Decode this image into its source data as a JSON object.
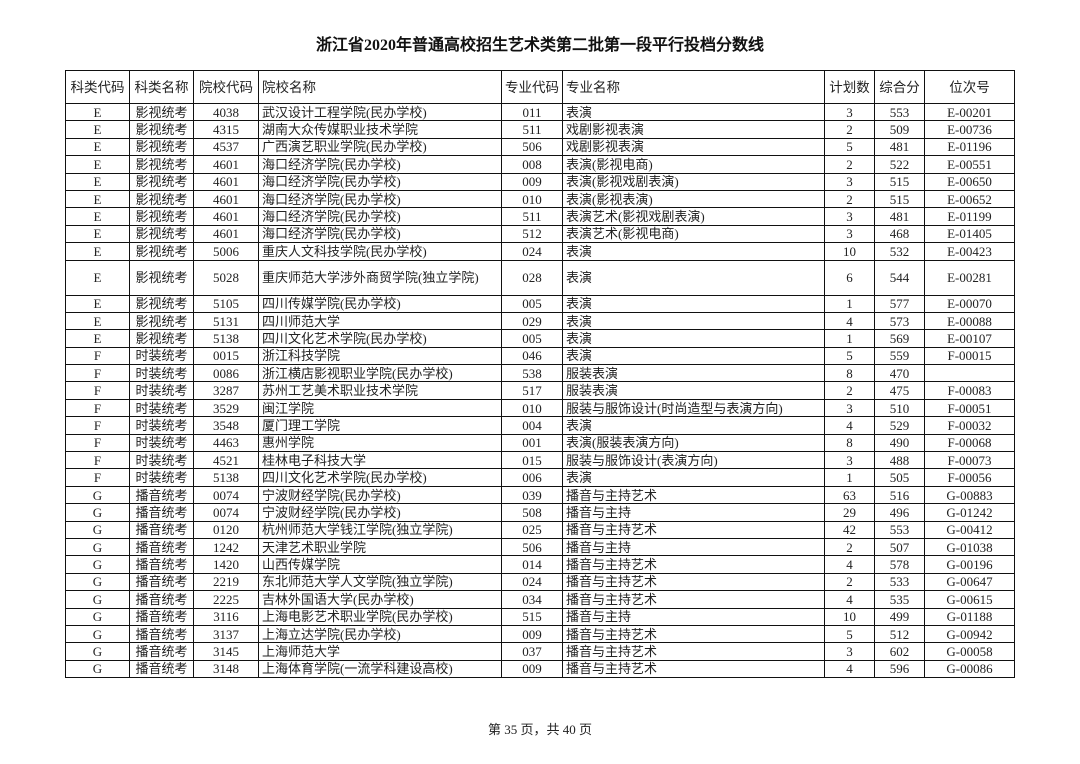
{
  "title": "浙江省2020年普通高校招生艺术类第二批第一段平行投档分数线",
  "columns": [
    "科类代码",
    "科类名称",
    "院校代码",
    "院校名称",
    "专业代码",
    "专业名称",
    "计划数",
    "综合分",
    "位次号"
  ],
  "rows": [
    [
      "E",
      "影视统考",
      "4038",
      "武汉设计工程学院(民办学校)",
      "011",
      "表演",
      "3",
      "553",
      "E-00201"
    ],
    [
      "E",
      "影视统考",
      "4315",
      "湖南大众传媒职业技术学院",
      "511",
      "戏剧影视表演",
      "2",
      "509",
      "E-00736"
    ],
    [
      "E",
      "影视统考",
      "4537",
      "广西演艺职业学院(民办学校)",
      "506",
      "戏剧影视表演",
      "5",
      "481",
      "E-01196"
    ],
    [
      "E",
      "影视统考",
      "4601",
      "海口经济学院(民办学校)",
      "008",
      "表演(影视电商)",
      "2",
      "522",
      "E-00551"
    ],
    [
      "E",
      "影视统考",
      "4601",
      "海口经济学院(民办学校)",
      "009",
      "表演(影视戏剧表演)",
      "3",
      "515",
      "E-00650"
    ],
    [
      "E",
      "影视统考",
      "4601",
      "海口经济学院(民办学校)",
      "010",
      "表演(影视表演)",
      "2",
      "515",
      "E-00652"
    ],
    [
      "E",
      "影视统考",
      "4601",
      "海口经济学院(民办学校)",
      "511",
      "表演艺术(影视戏剧表演)",
      "3",
      "481",
      "E-01199"
    ],
    [
      "E",
      "影视统考",
      "4601",
      "海口经济学院(民办学校)",
      "512",
      "表演艺术(影视电商)",
      "3",
      "468",
      "E-01405"
    ],
    [
      "E",
      "影视统考",
      "5006",
      "重庆人文科技学院(民办学校)",
      "024",
      "表演",
      "10",
      "532",
      "E-00423"
    ],
    [
      "E",
      "影视统考",
      "5028",
      "重庆师范大学涉外商贸学院(独立学院)",
      "028",
      "表演",
      "6",
      "544",
      "E-00281"
    ],
    [
      "E",
      "影视统考",
      "5105",
      "四川传媒学院(民办学校)",
      "005",
      "表演",
      "1",
      "577",
      "E-00070"
    ],
    [
      "E",
      "影视统考",
      "5131",
      "四川师范大学",
      "029",
      "表演",
      "4",
      "573",
      "E-00088"
    ],
    [
      "E",
      "影视统考",
      "5138",
      "四川文化艺术学院(民办学校)",
      "005",
      "表演",
      "1",
      "569",
      "E-00107"
    ],
    [
      "F",
      "时装统考",
      "0015",
      "浙江科技学院",
      "046",
      "表演",
      "5",
      "559",
      "F-00015"
    ],
    [
      "F",
      "时装统考",
      "0086",
      "浙江横店影视职业学院(民办学校)",
      "538",
      "服装表演",
      "8",
      "470",
      ""
    ],
    [
      "F",
      "时装统考",
      "3287",
      "苏州工艺美术职业技术学院",
      "517",
      "服装表演",
      "2",
      "475",
      "F-00083"
    ],
    [
      "F",
      "时装统考",
      "3529",
      "闽江学院",
      "010",
      "服装与服饰设计(时尚造型与表演方向)",
      "3",
      "510",
      "F-00051"
    ],
    [
      "F",
      "时装统考",
      "3548",
      "厦门理工学院",
      "004",
      "表演",
      "4",
      "529",
      "F-00032"
    ],
    [
      "F",
      "时装统考",
      "4463",
      "惠州学院",
      "001",
      "表演(服装表演方向)",
      "8",
      "490",
      "F-00068"
    ],
    [
      "F",
      "时装统考",
      "4521",
      "桂林电子科技大学",
      "015",
      "服装与服饰设计(表演方向)",
      "3",
      "488",
      "F-00073"
    ],
    [
      "F",
      "时装统考",
      "5138",
      "四川文化艺术学院(民办学校)",
      "006",
      "表演",
      "1",
      "505",
      "F-00056"
    ],
    [
      "G",
      "播音统考",
      "0074",
      "宁波财经学院(民办学校)",
      "039",
      "播音与主持艺术",
      "63",
      "516",
      "G-00883"
    ],
    [
      "G",
      "播音统考",
      "0074",
      "宁波财经学院(民办学校)",
      "508",
      "播音与主持",
      "29",
      "496",
      "G-01242"
    ],
    [
      "G",
      "播音统考",
      "0120",
      "杭州师范大学钱江学院(独立学院)",
      "025",
      "播音与主持艺术",
      "42",
      "553",
      "G-00412"
    ],
    [
      "G",
      "播音统考",
      "1242",
      "天津艺术职业学院",
      "506",
      "播音与主持",
      "2",
      "507",
      "G-01038"
    ],
    [
      "G",
      "播音统考",
      "1420",
      "山西传媒学院",
      "014",
      "播音与主持艺术",
      "4",
      "578",
      "G-00196"
    ],
    [
      "G",
      "播音统考",
      "2219",
      "东北师范大学人文学院(独立学院)",
      "024",
      "播音与主持艺术",
      "2",
      "533",
      "G-00647"
    ],
    [
      "G",
      "播音统考",
      "2225",
      "吉林外国语大学(民办学校)",
      "034",
      "播音与主持艺术",
      "4",
      "535",
      "G-00615"
    ],
    [
      "G",
      "播音统考",
      "3116",
      "上海电影艺术职业学院(民办学校)",
      "515",
      "播音与主持",
      "10",
      "499",
      "G-01188"
    ],
    [
      "G",
      "播音统考",
      "3137",
      "上海立达学院(民办学校)",
      "009",
      "播音与主持艺术",
      "5",
      "512",
      "G-00942"
    ],
    [
      "G",
      "播音统考",
      "3145",
      "上海师范大学",
      "037",
      "播音与主持艺术",
      "3",
      "602",
      "G-00058"
    ],
    [
      "G",
      "播音统考",
      "3148",
      "上海体育学院(一流学科建设高校)",
      "009",
      "播音与主持艺术",
      "4",
      "596",
      "G-00086"
    ]
  ],
  "footer": "第 35 页，共 40 页"
}
